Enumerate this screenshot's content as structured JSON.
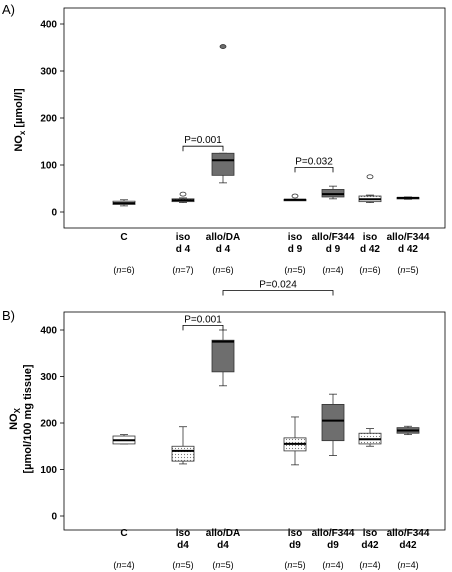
{
  "chart_data": [
    {
      "type": "box",
      "panel_label": "A)",
      "ylabel_main": "NO",
      "ylabel_sub": "x",
      "ylabel_unit": " [µmol/l]",
      "ylim": [
        0,
        400
      ],
      "yticks": [
        0,
        100,
        200,
        300,
        400
      ],
      "grid": false,
      "categories": [
        {
          "line1": "C",
          "line2": "",
          "n": "6"
        },
        {
          "line1": "iso",
          "line2": "d 4",
          "n": "7"
        },
        {
          "line1": "allo/DA",
          "line2": "d 4",
          "n": "6"
        },
        {
          "line1": "iso",
          "line2": "d 9",
          "n": "5"
        },
        {
          "line1": "allo/F344",
          "line2": "d 9",
          "n": "4"
        },
        {
          "line1": "iso",
          "line2": "d 42",
          "n": "6"
        },
        {
          "line1": "allo/F344",
          "line2": "d 42",
          "n": "5"
        }
      ],
      "boxes": [
        {
          "fill": "white",
          "wlo": 13,
          "q1": 16,
          "med": 19,
          "q3": 23,
          "whi": 26,
          "outliers": []
        },
        {
          "fill": "dotted",
          "wlo": 20,
          "q1": 22,
          "med": 25,
          "q3": 28,
          "whi": 30,
          "outliers": [
            38
          ]
        },
        {
          "fill": "dark",
          "wlo": 62,
          "q1": 78,
          "med": 110,
          "q3": 125,
          "whi": 125,
          "outliers": [
            352
          ]
        },
        {
          "fill": "dotted",
          "wlo": 26,
          "q1": 26,
          "med": 26,
          "q3": 27,
          "whi": 27,
          "outliers": [
            34
          ]
        },
        {
          "fill": "dark",
          "wlo": 28,
          "q1": 32,
          "med": 38,
          "q3": 48,
          "whi": 55,
          "outliers": []
        },
        {
          "fill": "dotted",
          "wlo": 20,
          "q1": 22,
          "med": 27,
          "q3": 34,
          "whi": 36,
          "outliers": [
            75
          ]
        },
        {
          "fill": "dark",
          "wlo": 27,
          "q1": 28,
          "med": 30,
          "q3": 31,
          "whi": 32,
          "outliers": []
        }
      ],
      "annotations": [
        {
          "text": "P=0.001",
          "from": 1,
          "to": 2,
          "y": 140
        },
        {
          "text": "P=0.032",
          "from": 3,
          "to": 4,
          "y": 95
        }
      ],
      "n_prefix": "(",
      "n_italic": "n",
      "n_suffix": ")"
    },
    {
      "type": "box",
      "panel_label": "B)",
      "ylabel_main": "NO",
      "ylabel_sub": "X",
      "ylabel_unit": "[µmol/100 mg tissue]",
      "ylim": [
        0,
        400
      ],
      "yticks": [
        0,
        100,
        200,
        300,
        400
      ],
      "grid": false,
      "categories": [
        {
          "line1": "C",
          "line2": "",
          "n": "4"
        },
        {
          "line1": "iso",
          "line2": "d4",
          "n": "5"
        },
        {
          "line1": "allo/DA",
          "line2": "d4",
          "n": "5"
        },
        {
          "line1": "iso",
          "line2": "d9",
          "n": "5"
        },
        {
          "line1": "allo/F344",
          "line2": "d9",
          "n": "4"
        },
        {
          "line1": "iso",
          "line2": "d42",
          "n": "4"
        },
        {
          "line1": "allo/F344",
          "line2": "d42",
          "n": "4"
        }
      ],
      "boxes": [
        {
          "fill": "white",
          "wlo": 155,
          "q1": 155,
          "med": 163,
          "q3": 172,
          "whi": 175,
          "outliers": []
        },
        {
          "fill": "dotted",
          "wlo": 112,
          "q1": 118,
          "med": 140,
          "q3": 150,
          "whi": 192,
          "outliers": []
        },
        {
          "fill": "dark",
          "wlo": 280,
          "q1": 310,
          "med": 375,
          "q3": 378,
          "whi": 400,
          "outliers": []
        },
        {
          "fill": "dotted",
          "wlo": 110,
          "q1": 140,
          "med": 155,
          "q3": 168,
          "whi": 213,
          "outliers": []
        },
        {
          "fill": "dark",
          "wlo": 130,
          "q1": 162,
          "med": 205,
          "q3": 240,
          "whi": 262,
          "outliers": []
        },
        {
          "fill": "dotted",
          "wlo": 150,
          "q1": 155,
          "med": 165,
          "q3": 178,
          "whi": 188,
          "outliers": []
        },
        {
          "fill": "dark",
          "wlo": 175,
          "q1": 178,
          "med": 184,
          "q3": 190,
          "whi": 193,
          "outliers": []
        }
      ],
      "annotations": [
        {
          "text": "P=0.001",
          "from": 1,
          "to": 2,
          "y": 410
        },
        {
          "text": "P=0.024",
          "from": 2,
          "to": 4,
          "y": 485
        }
      ],
      "n_prefix": "(",
      "n_italic": "n",
      "n_suffix": ")"
    }
  ]
}
